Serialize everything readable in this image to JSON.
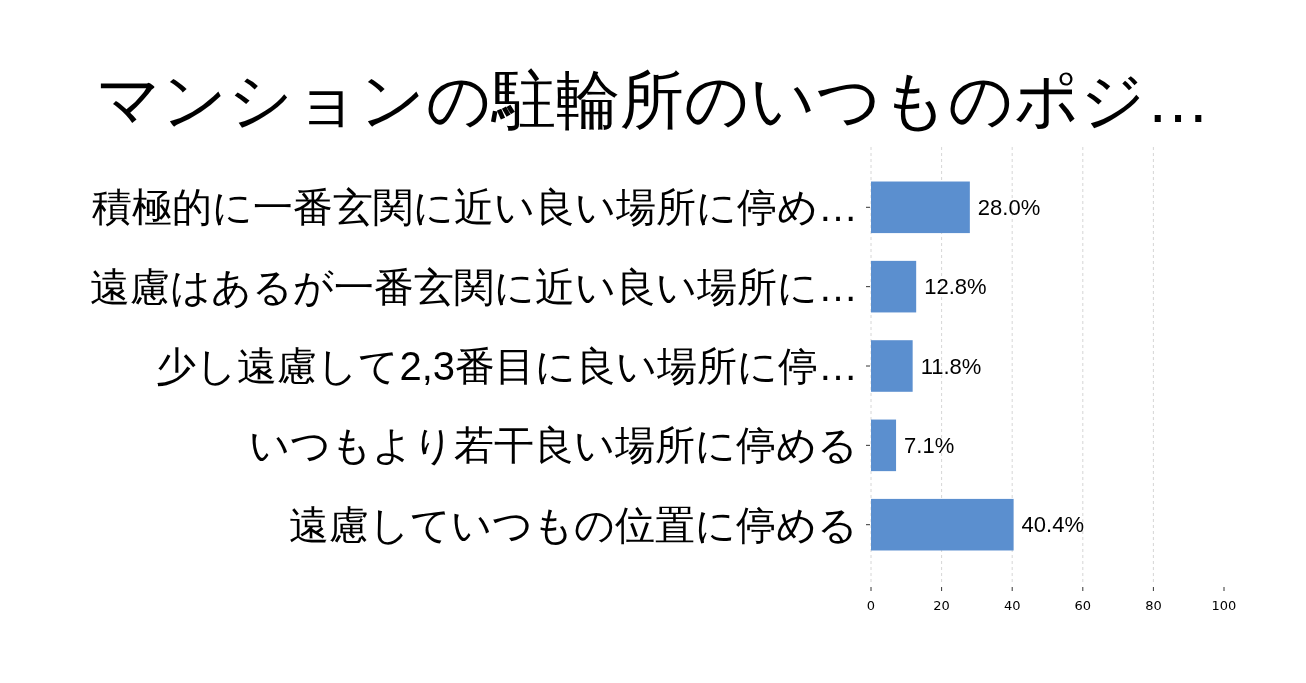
{
  "chart_data": {
    "type": "bar",
    "orientation": "horizontal",
    "title": "マンションの駐輪所のいつものポジ…",
    "categories": [
      "積極的に一番玄関に近い良い場所に停め…",
      "遠慮はあるが一番玄関に近い良い場所に…",
      "少し遠慮して2,3番目に良い場所に停…",
      "いつもより若干良い場所に停める",
      "遠慮していつもの位置に停める"
    ],
    "values": [
      28.0,
      12.8,
      11.8,
      7.1,
      40.4
    ],
    "color": "#5b8fcf",
    "value_labels": [
      "28.0%",
      "12.8%",
      "11.8%",
      "7.1%",
      "40.4%"
    ],
    "xlim": [
      0,
      100
    ],
    "xticks": [
      0,
      20,
      40,
      60,
      80,
      100
    ],
    "grid": "x"
  }
}
